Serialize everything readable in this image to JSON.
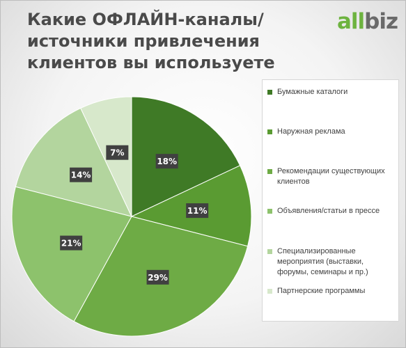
{
  "title": "Какие ОФЛАЙН-каналы/источники привлечения клиентов вы используете",
  "logo": {
    "part1": "all",
    "part2": "biz"
  },
  "chart_data": {
    "type": "pie",
    "categories": [
      "Бумажные каталоги",
      "Наружная реклама",
      "Рекомендации существующих клиентов",
      "Объявления/статьи в прессе",
      "Специализированные мероприятия (выставки, форумы, семинары и пр.)",
      "Партнерские программы"
    ],
    "values": [
      18,
      11,
      29,
      21,
      14,
      7
    ],
    "labels": [
      "18%",
      "11%",
      "29%",
      "21%",
      "14%",
      "7%"
    ],
    "colors": [
      "#3f7a26",
      "#5a9b32",
      "#6eab45",
      "#8dc26c",
      "#b3d59e",
      "#d7e8cb"
    ],
    "legend_position": "right"
  }
}
